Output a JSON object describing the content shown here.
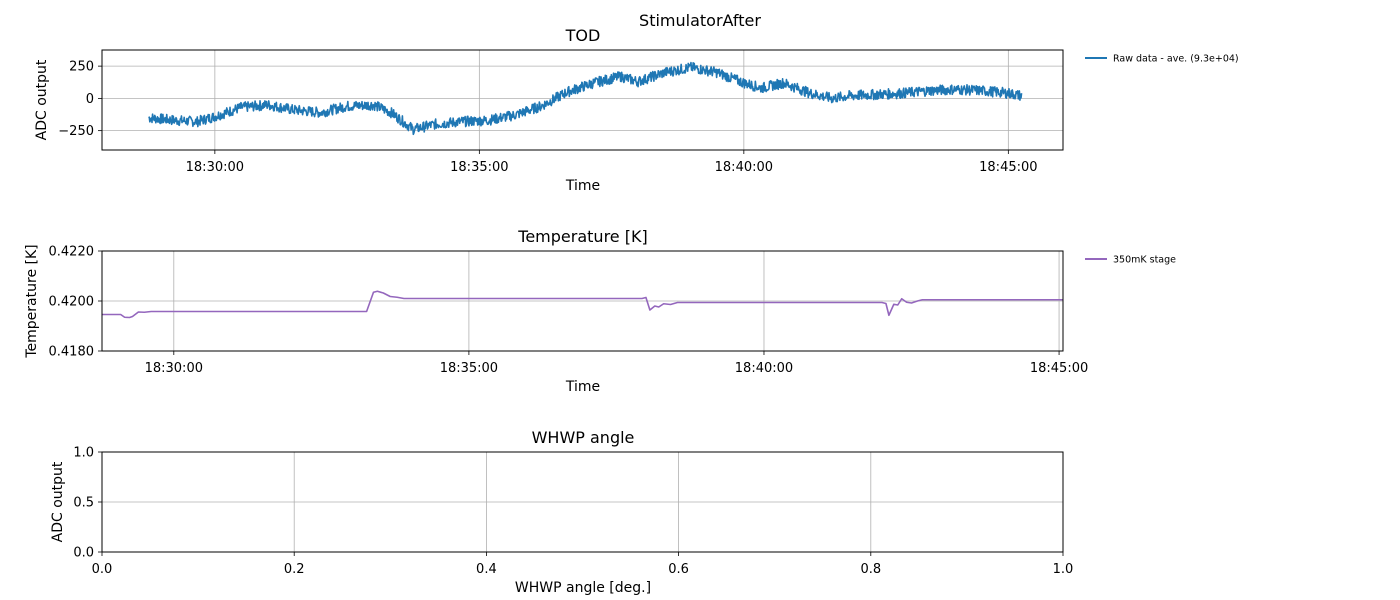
{
  "figure": {
    "suptitle": "StimulatorAfter"
  },
  "chart_data": [
    {
      "type": "line",
      "title": "TOD",
      "xlabel": "Time",
      "ylabel": "ADC output",
      "x_axis_type": "time",
      "xlim": [
        "18:27:52",
        "18:46:02"
      ],
      "ylim": [
        -400,
        375
      ],
      "xticks": [
        "18:30:00",
        "18:35:00",
        "18:40:00",
        "18:45:00"
      ],
      "yticks": [
        -250,
        0,
        250
      ],
      "ytick_labels": [
        "−250",
        "0",
        "250"
      ],
      "grid": true,
      "legend_position": "outside-right",
      "series": [
        {
          "name": "Raw data - ave. (9.3e+04)",
          "color": "#1f77b4",
          "noise_band": 40,
          "points": [
            [
              "18:28:45",
              -150
            ],
            [
              "18:29:15",
              -170
            ],
            [
              "18:29:40",
              -180
            ],
            [
              "18:30:00",
              -140
            ],
            [
              "18:30:30",
              -70
            ],
            [
              "18:31:00",
              -50
            ],
            [
              "18:31:30",
              -90
            ],
            [
              "18:32:00",
              -110
            ],
            [
              "18:32:30",
              -60
            ],
            [
              "18:33:00",
              -50
            ],
            [
              "18:33:20",
              -110
            ],
            [
              "18:33:45",
              -240
            ],
            [
              "18:34:10",
              -200
            ],
            [
              "18:34:40",
              -180
            ],
            [
              "18:35:10",
              -170
            ],
            [
              "18:35:40",
              -130
            ],
            [
              "18:36:10",
              -60
            ],
            [
              "18:36:40",
              50
            ],
            [
              "18:37:10",
              120
            ],
            [
              "18:37:40",
              170
            ],
            [
              "18:38:00",
              130
            ],
            [
              "18:38:30",
              200
            ],
            [
              "18:39:00",
              240
            ],
            [
              "18:39:30",
              200
            ],
            [
              "18:40:00",
              120
            ],
            [
              "18:40:20",
              80
            ],
            [
              "18:40:45",
              120
            ],
            [
              "18:41:15",
              40
            ],
            [
              "18:41:40",
              0
            ],
            [
              "18:42:00",
              20
            ],
            [
              "18:42:30",
              30
            ],
            [
              "18:43:00",
              40
            ],
            [
              "18:43:30",
              60
            ],
            [
              "18:44:00",
              70
            ],
            [
              "18:44:30",
              60
            ],
            [
              "18:45:00",
              40
            ],
            [
              "18:45:15",
              20
            ]
          ]
        }
      ]
    },
    {
      "type": "line",
      "title": "Temperature [K]",
      "xlabel": "Time",
      "ylabel": "Temperature [K]",
      "x_axis_type": "time",
      "xlim": [
        "18:28:47",
        "18:45:04"
      ],
      "ylim": [
        0.418,
        0.422
      ],
      "xticks": [
        "18:30:00",
        "18:35:00",
        "18:40:00",
        "18:45:00"
      ],
      "yticks": [
        0.418,
        0.42,
        0.422
      ],
      "ytick_labels": [
        "0.4180",
        "0.4200",
        "0.4220"
      ],
      "grid": true,
      "legend_position": "outside-right",
      "series": [
        {
          "name": "350mK stage",
          "color": "#9467bd",
          "points": [
            [
              "18:28:47",
              0.41946
            ],
            [
              "18:29:06",
              0.41946
            ],
            [
              "18:29:10",
              0.41935
            ],
            [
              "18:29:15",
              0.41934
            ],
            [
              "18:29:18",
              0.41938
            ],
            [
              "18:29:24",
              0.41956
            ],
            [
              "18:29:30",
              0.41955
            ],
            [
              "18:29:37",
              0.41958
            ],
            [
              "18:29:44",
              0.41958
            ],
            [
              "18:33:16",
              0.41958
            ],
            [
              "18:33:23",
              0.42035
            ],
            [
              "18:33:27",
              0.42039
            ],
            [
              "18:33:33",
              0.42032
            ],
            [
              "18:33:40",
              0.42018
            ],
            [
              "18:33:47",
              0.42015
            ],
            [
              "18:33:54",
              0.4201
            ],
            [
              "18:37:56",
              0.4201
            ],
            [
              "18:38:00",
              0.42014
            ],
            [
              "18:38:04",
              0.41964
            ],
            [
              "18:38:09",
              0.4198
            ],
            [
              "18:38:13",
              0.41976
            ],
            [
              "18:38:18",
              0.41989
            ],
            [
              "18:38:25",
              0.41986
            ],
            [
              "18:38:32",
              0.41994
            ],
            [
              "18:42:00",
              0.41994
            ],
            [
              "18:42:04",
              0.4199
            ],
            [
              "18:42:07",
              0.41943
            ],
            [
              "18:42:12",
              0.41987
            ],
            [
              "18:42:16",
              0.41984
            ],
            [
              "18:42:20",
              0.42009
            ],
            [
              "18:42:25",
              0.41995
            ],
            [
              "18:42:30",
              0.41992
            ],
            [
              "18:42:36",
              0.42
            ],
            [
              "18:42:41",
              0.42005
            ],
            [
              "18:45:04",
              0.42005
            ]
          ]
        }
      ]
    },
    {
      "type": "line",
      "title": "WHWP angle",
      "xlabel": "WHWP angle [deg.]",
      "ylabel": "ADC output",
      "xlim": [
        0,
        1
      ],
      "ylim": [
        0,
        1
      ],
      "xticks": [
        0,
        0.2,
        0.4,
        0.6,
        0.8,
        1
      ],
      "xtick_labels": [
        "0.0",
        "0.2",
        "0.4",
        "0.6",
        "0.8",
        "1.0"
      ],
      "yticks": [
        0,
        0.5,
        1
      ],
      "ytick_labels": [
        "0.0",
        "0.5",
        "1.0"
      ],
      "grid": true,
      "series": []
    }
  ]
}
